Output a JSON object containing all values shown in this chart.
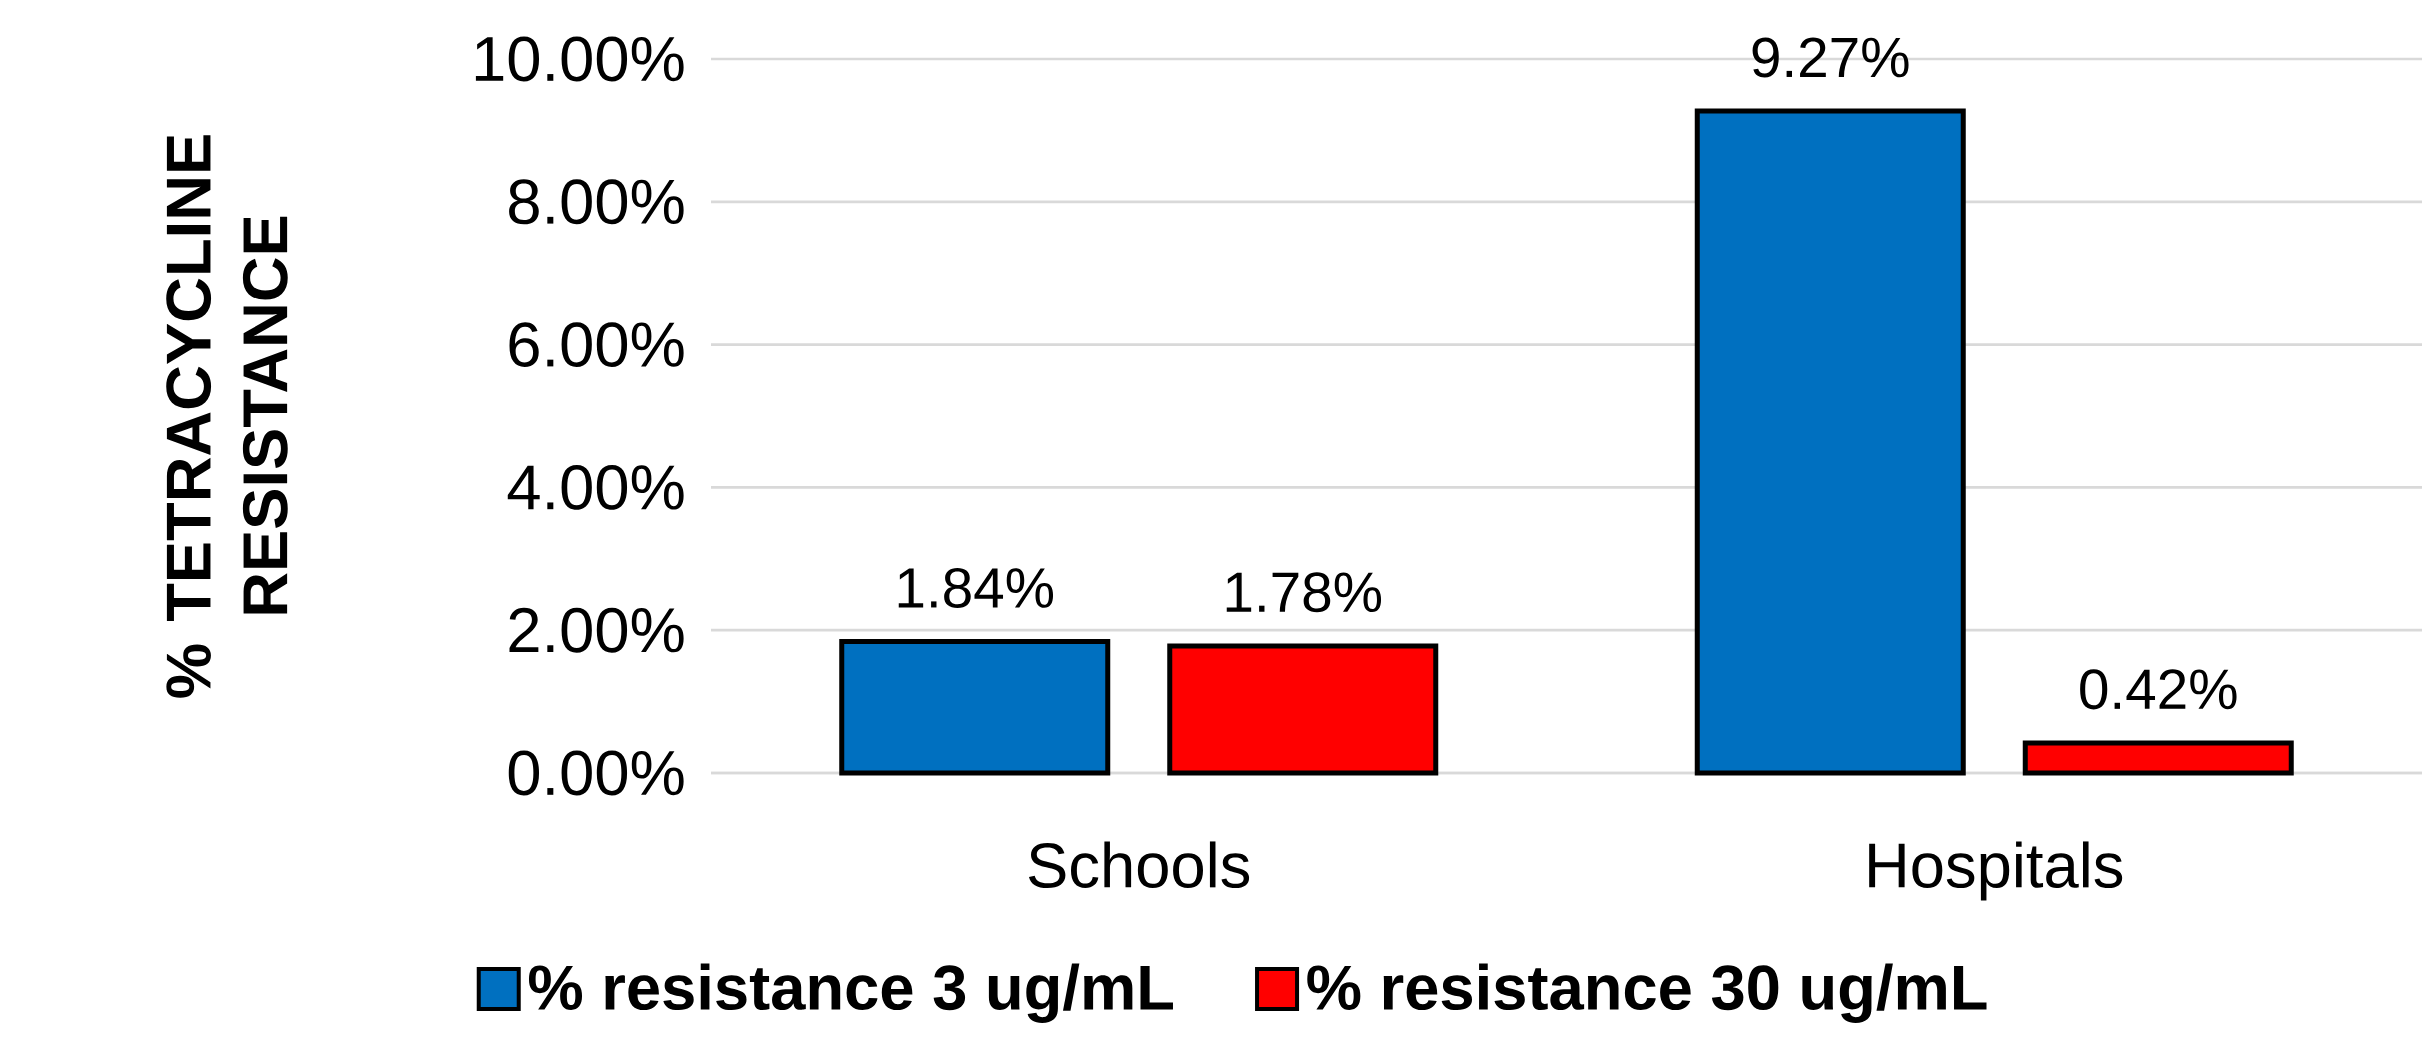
{
  "chart_data": {
    "type": "bar",
    "ylabel": "% TETRACYCLINE RESISTANCE",
    "categories": [
      "Schools",
      "Hospitals"
    ],
    "series": [
      {
        "name": "% resistance 3 ug/mL",
        "color": "#0070c0",
        "values": [
          1.84,
          9.27
        ],
        "value_labels": [
          "1.84%",
          "9.27%"
        ]
      },
      {
        "name": "% resistance 30 ug/mL",
        "color": "#ff0000",
        "values": [
          1.78,
          0.42
        ],
        "value_labels": [
          "1.78%",
          "0.42%"
        ]
      }
    ],
    "ylim": [
      0,
      10
    ],
    "yticks": [
      {
        "value": 0,
        "label": "0.00%"
      },
      {
        "value": 2,
        "label": "2.00%"
      },
      {
        "value": 4,
        "label": "4.00%"
      },
      {
        "value": 6,
        "label": "6.00%"
      },
      {
        "value": 8,
        "label": "8.00%"
      },
      {
        "value": 10,
        "label": "10.00%"
      }
    ],
    "grid": "y",
    "legend": "bottom"
  }
}
